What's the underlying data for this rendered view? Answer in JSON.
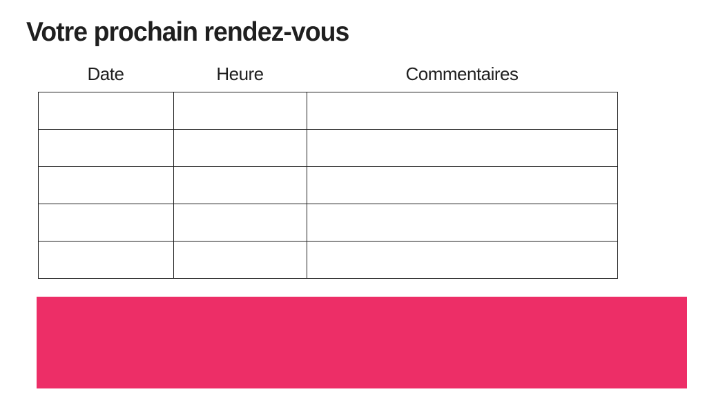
{
  "title": "Votre prochain rendez-vous",
  "table": {
    "headers": [
      "Date",
      "Heure",
      "Commentaires"
    ],
    "rows": [
      [
        "",
        "",
        ""
      ],
      [
        "",
        "",
        ""
      ],
      [
        "",
        "",
        ""
      ],
      [
        "",
        "",
        ""
      ],
      [
        "",
        "",
        ""
      ]
    ]
  },
  "colors": {
    "accent": "#ED2E67",
    "border": "#1F1F1F",
    "text": "#1F1F1F",
    "background": "#FFFFFF"
  }
}
